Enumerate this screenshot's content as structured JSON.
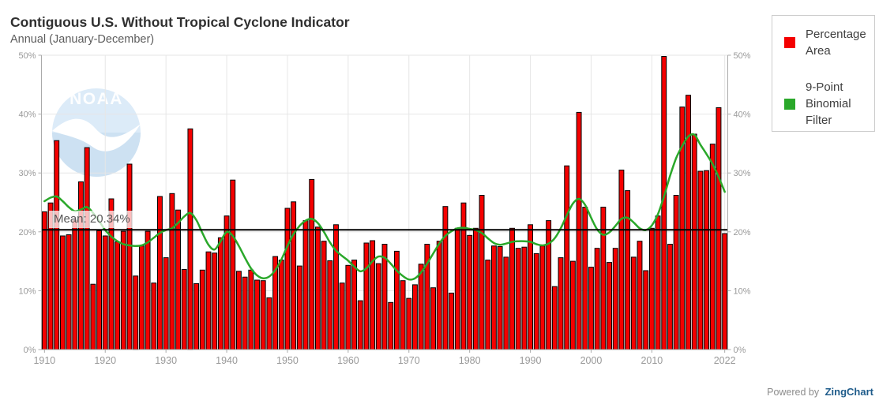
{
  "header": {
    "title": "Contiguous U.S. Without Tropical Cyclone Indicator",
    "subtitle": "Annual (January-December)"
  },
  "legend": {
    "items": [
      {
        "label": "Percentage Area",
        "color": "#f40000",
        "marker": "square"
      },
      {
        "label": "9-Point Binomial Filter",
        "color": "#2aa82a",
        "marker": "square"
      }
    ]
  },
  "watermark": {
    "text": "NOAA"
  },
  "mean_label": "Mean: 20.34%",
  "footer": {
    "powered_by": "Powered by",
    "brand": "ZingChart"
  },
  "colors": {
    "bar_fill": "#f40000",
    "bar_border": "#000000",
    "filter_line": "#2aa82a",
    "mean_line": "#000000",
    "grid": "#e6e6e6",
    "axis": "#ababab",
    "tick_text": "#999999",
    "watermark_circle": "#dcebf8",
    "watermark_sea": "#cde1f2",
    "brand_blue": "#1f5c8b"
  },
  "chart_data": {
    "type": "bar",
    "title": "Contiguous U.S. Without Tropical Cyclone Indicator",
    "subtitle": "Annual (January-December)",
    "xlabel": "",
    "ylabel": "",
    "ylim": [
      0,
      50
    ],
    "yticks": [
      "0%",
      "10%",
      "20%",
      "30%",
      "40%",
      "50%"
    ],
    "xticks": [
      1910,
      1920,
      1930,
      1940,
      1950,
      1960,
      1970,
      1980,
      1990,
      2000,
      2010,
      2022
    ],
    "grid": true,
    "legend_position": "top-right",
    "mean": 20.34,
    "years": [
      1910,
      1911,
      1912,
      1913,
      1914,
      1915,
      1916,
      1917,
      1918,
      1919,
      1920,
      1921,
      1922,
      1923,
      1924,
      1925,
      1926,
      1927,
      1928,
      1929,
      1930,
      1931,
      1932,
      1933,
      1934,
      1935,
      1936,
      1937,
      1938,
      1939,
      1940,
      1941,
      1942,
      1943,
      1944,
      1945,
      1946,
      1947,
      1948,
      1949,
      1950,
      1951,
      1952,
      1953,
      1954,
      1955,
      1956,
      1957,
      1958,
      1959,
      1960,
      1961,
      1962,
      1963,
      1964,
      1965,
      1966,
      1967,
      1968,
      1969,
      1970,
      1971,
      1972,
      1973,
      1974,
      1975,
      1976,
      1977,
      1978,
      1979,
      1980,
      1981,
      1982,
      1983,
      1984,
      1985,
      1986,
      1987,
      1988,
      1989,
      1990,
      1991,
      1992,
      1993,
      1994,
      1995,
      1996,
      1997,
      1998,
      1999,
      2000,
      2001,
      2002,
      2003,
      2004,
      2005,
      2006,
      2007,
      2008,
      2009,
      2010,
      2011,
      2012,
      2013,
      2014,
      2015,
      2016,
      2017,
      2018,
      2019,
      2020,
      2021,
      2022
    ],
    "series": [
      {
        "name": "Percentage Area",
        "type": "bar",
        "color": "#f40000",
        "values": [
          23.4,
          24.9,
          35.5,
          19.3,
          19.5,
          22.0,
          28.5,
          34.3,
          11.1,
          20.2,
          19.3,
          25.6,
          18.3,
          20.1,
          31.5,
          12.5,
          17.6,
          20.1,
          11.3,
          26.0,
          15.6,
          26.5,
          23.7,
          13.6,
          37.5,
          11.2,
          13.5,
          16.6,
          16.4,
          19.0,
          22.7,
          28.8,
          13.3,
          12.3,
          13.5,
          11.8,
          11.7,
          8.8,
          15.8,
          15.2,
          24.0,
          25.1,
          14.2,
          21.9,
          28.9,
          20.8,
          18.4,
          15.1,
          21.2,
          11.3,
          14.3,
          15.2,
          8.3,
          18.1,
          18.5,
          14.6,
          17.9,
          8.0,
          16.7,
          11.7,
          8.7,
          11.0,
          14.5,
          17.9,
          10.5,
          18.4,
          24.3,
          9.6,
          20.6,
          24.9,
          19.4,
          20.6,
          26.2,
          15.2,
          17.6,
          17.5,
          15.7,
          20.6,
          17.2,
          17.4,
          21.2,
          16.3,
          17.6,
          21.9,
          10.7,
          15.6,
          31.2,
          15.0,
          40.3,
          24.2,
          14.0,
          17.2,
          24.2,
          14.8,
          17.2,
          30.5,
          27.0,
          15.7,
          18.4,
          13.4,
          20.6,
          22.7,
          49.8,
          17.9,
          26.2,
          41.2,
          43.2,
          36.6,
          30.3,
          30.4,
          34.9,
          41.1,
          19.7
        ]
      },
      {
        "name": "9-Point Binomial Filter",
        "type": "line",
        "color": "#2aa82a",
        "values": [
          25.2,
          25.8,
          26.0,
          25.2,
          24.2,
          23.5,
          23.8,
          24.2,
          23.2,
          21.8,
          20.3,
          19.2,
          18.4,
          17.9,
          17.7,
          17.6,
          17.7,
          18.2,
          19.0,
          19.8,
          20.3,
          20.6,
          21.5,
          22.6,
          23.2,
          22.0,
          19.8,
          17.8,
          17.0,
          18.4,
          20.0,
          19.3,
          17.6,
          15.6,
          13.8,
          12.6,
          12.1,
          12.4,
          13.5,
          15.3,
          17.6,
          19.6,
          21.0,
          21.9,
          22.2,
          21.5,
          20.0,
          18.2,
          16.8,
          15.9,
          15.1,
          14.1,
          13.3,
          13.8,
          15.0,
          15.8,
          15.6,
          14.6,
          13.4,
          12.5,
          11.9,
          12.1,
          13.1,
          14.6,
          16.3,
          18.0,
          19.3,
          20.1,
          20.6,
          20.7,
          20.5,
          20.3,
          19.8,
          18.9,
          18.1,
          17.8,
          18.0,
          18.3,
          18.4,
          18.4,
          18.3,
          17.9,
          17.7,
          18.0,
          18.9,
          20.6,
          22.8,
          24.8,
          25.6,
          24.6,
          22.4,
          20.4,
          19.5,
          19.9,
          21.0,
          22.2,
          22.4,
          21.6,
          20.6,
          20.3,
          21.1,
          23.0,
          26.0,
          29.5,
          32.5,
          34.6,
          36.2,
          36.5,
          34.8,
          33.2,
          31.5,
          29.3,
          26.8
        ]
      }
    ]
  }
}
